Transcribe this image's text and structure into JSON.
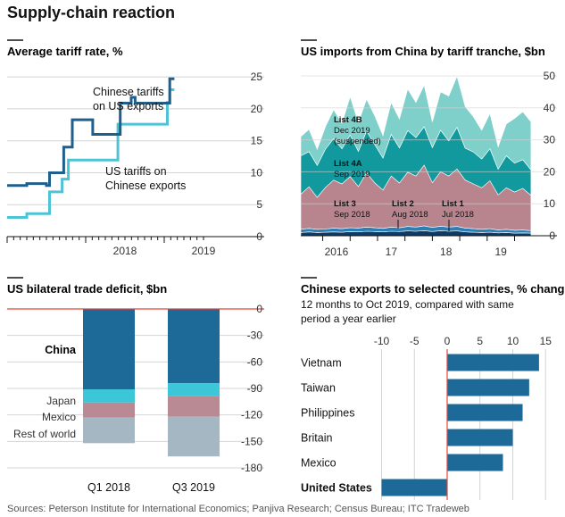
{
  "figure": {
    "title": "Supply-chain reaction",
    "source": "Sources: Peterson Institute for International Economics; Panjiva Research; Census Bureau; ITC Tradeweb"
  },
  "colors": {
    "dark_blue": "#1f5f8b",
    "light_blue": "#4fc3d6",
    "grid": "#d4d4d4",
    "zero_line": "#e0483b",
    "text_muted": "#555555",
    "list1": "#0d3b66",
    "list2": "#2a7fb4",
    "list3": "#b8858f",
    "list4a": "#11999e",
    "list4b": "#7fd0cb",
    "china_bar": "#1d6a98",
    "japan_bar": "#3cc7d8",
    "mexico_bar": "#b98a93",
    "rest_bar": "#a5b7c3",
    "export_bar": "#1d6a98"
  },
  "chart_data": [
    {
      "type": "line",
      "title": "Average tariff rate, %",
      "x_ticks": [
        {
          "x": 2018,
          "label": "2018"
        },
        {
          "x": 2019,
          "label": "2019"
        }
      ],
      "y_ticks": [
        0,
        5,
        10,
        15,
        20,
        25
      ],
      "ylim": [
        0,
        26
      ],
      "xlim": [
        2017.0,
        2020.0
      ],
      "series": [
        {
          "name": "Chinese tariffs on US exports",
          "label_lines": [
            "Chinese tariffs",
            "on US exports"
          ],
          "color_key": "dark_blue",
          "points": [
            [
              2017.0,
              8.0
            ],
            [
              2017.25,
              8.0
            ],
            [
              2017.25,
              8.3
            ],
            [
              2017.5,
              8.3
            ],
            [
              2017.5,
              8.0
            ],
            [
              2017.54,
              8.0
            ],
            [
              2017.54,
              10.0
            ],
            [
              2017.72,
              10.0
            ],
            [
              2017.72,
              14.0
            ],
            [
              2017.83,
              14.0
            ],
            [
              2017.83,
              18.3
            ],
            [
              2018.09,
              18.3
            ],
            [
              2018.09,
              16.0
            ],
            [
              2018.44,
              16.0
            ],
            [
              2018.44,
              20.9
            ],
            [
              2018.58,
              20.9
            ],
            [
              2018.58,
              21.8
            ],
            [
              2018.63,
              21.8
            ],
            [
              2018.63,
              20.9
            ],
            [
              2019.07,
              20.9
            ],
            [
              2019.07,
              24.7
            ],
            [
              2019.13,
              24.7
            ]
          ]
        },
        {
          "name": "US tariffs on Chinese exports",
          "label_lines": [
            "US tariffs on",
            "Chinese exports"
          ],
          "color_key": "light_blue",
          "points": [
            [
              2017.0,
              3.0
            ],
            [
              2017.25,
              3.0
            ],
            [
              2017.25,
              3.6
            ],
            [
              2017.54,
              3.6
            ],
            [
              2017.54,
              7.0
            ],
            [
              2017.7,
              7.0
            ],
            [
              2017.7,
              9.0
            ],
            [
              2017.78,
              9.0
            ],
            [
              2017.78,
              12.0
            ],
            [
              2018.41,
              12.0
            ],
            [
              2018.41,
              17.6
            ],
            [
              2019.04,
              17.6
            ],
            [
              2019.04,
              21.0
            ],
            [
              2019.07,
              21.0
            ],
            [
              2019.07,
              23.0
            ],
            [
              2019.13,
              23.0
            ]
          ]
        }
      ]
    },
    {
      "type": "area",
      "title": "US imports from China by tariff tranche, $bn",
      "x_ticks": [
        {
          "x": 2016,
          "label": "2016"
        },
        {
          "x": 2017,
          "label": "17"
        },
        {
          "x": 2018,
          "label": "18"
        },
        {
          "x": 2019,
          "label": "19"
        }
      ],
      "y_ticks": [
        0,
        10,
        20,
        30,
        40,
        50
      ],
      "ylim": [
        0,
        50
      ],
      "xlim": [
        2015.6,
        2019.85
      ],
      "x": [
        2015.6,
        2015.75,
        2015.9,
        2016.05,
        2016.2,
        2016.35,
        2016.5,
        2016.65,
        2016.8,
        2016.95,
        2017.1,
        2017.25,
        2017.4,
        2017.55,
        2017.7,
        2017.85,
        2018.0,
        2018.15,
        2018.3,
        2018.45,
        2018.6,
        2018.75,
        2018.9,
        2019.05,
        2019.2,
        2019.35,
        2019.5,
        2019.65,
        2019.8
      ],
      "series": [
        {
          "name": "List 1",
          "annotation": [
            "List 1",
            "Jul 2018"
          ],
          "color_key": "list1",
          "values": [
            1.0,
            1.2,
            1.0,
            1.1,
            1.2,
            1.1,
            1.3,
            1.2,
            1.4,
            1.3,
            1.2,
            1.4,
            1.3,
            1.5,
            1.4,
            1.6,
            1.3,
            1.6,
            1.4,
            1.5,
            1.2,
            1.1,
            1.0,
            1.1,
            0.9,
            1.0,
            0.8,
            0.9,
            0.8
          ]
        },
        {
          "name": "List 2",
          "annotation": [
            "List 2",
            "Aug 2018"
          ],
          "color_key": "list2",
          "values": [
            1.0,
            1.1,
            1.0,
            1.0,
            1.2,
            1.1,
            1.2,
            1.2,
            1.3,
            1.2,
            1.1,
            1.3,
            1.2,
            1.4,
            1.3,
            1.5,
            1.3,
            1.4,
            1.3,
            1.4,
            1.2,
            1.1,
            1.0,
            1.1,
            0.9,
            1.0,
            0.9,
            0.9,
            0.8
          ]
        },
        {
          "name": "List 3",
          "annotation": [
            "List 3",
            "Sep 2018"
          ],
          "color_key": "list3",
          "values": [
            11,
            13,
            10,
            13,
            15,
            14,
            16,
            13,
            17,
            14,
            12,
            16,
            14,
            17,
            16,
            19,
            14,
            17,
            16,
            18,
            15,
            14,
            13,
            15,
            11,
            13,
            12,
            13,
            11
          ]
        },
        {
          "name": "List 4A",
          "annotation": [
            "List 4A",
            "Sep 2019"
          ],
          "color_key": "list4a",
          "values": [
            12,
            11,
            10,
            12,
            13,
            11,
            13,
            11,
            13,
            12,
            10,
            13,
            11,
            13,
            12,
            12,
            11,
            13,
            11,
            13,
            10,
            10,
            9,
            10,
            8,
            10,
            9,
            9,
            8
          ]
        },
        {
          "name": "List 4B",
          "annotation": [
            "List 4B",
            "Dec 2019",
            "(suspended)"
          ],
          "color_key": "list4b",
          "values": [
            6,
            7,
            5,
            7,
            9,
            8,
            12,
            9,
            10,
            9,
            7,
            10,
            9,
            13,
            11,
            13,
            8,
            12,
            14,
            16,
            13,
            11,
            9,
            11,
            7,
            10,
            14,
            15,
            15
          ]
        }
      ]
    },
    {
      "type": "bar",
      "title": "US bilateral trade deficit, $bn",
      "categories": [
        "Q1 2018",
        "Q3 2019"
      ],
      "y_ticks": [
        0,
        -30,
        -60,
        -90,
        -120,
        -150,
        -180
      ],
      "ylim": [
        -185,
        0
      ],
      "series": [
        {
          "name": "China",
          "color_key": "china_bar",
          "values": [
            -91,
            -84
          ]
        },
        {
          "name": "Japan",
          "color_key": "japan_bar",
          "values": [
            -15,
            -15
          ]
        },
        {
          "name": "Mexico",
          "color_key": "mexico_bar",
          "values": [
            -17,
            -23
          ]
        },
        {
          "name": "Rest of world",
          "color_key": "rest_bar",
          "values": [
            -29,
            -45
          ]
        }
      ]
    },
    {
      "type": "bar",
      "orientation": "horizontal",
      "title": "Chinese exports to selected countries, % change",
      "subtitle_lines": [
        "12 months to Oct 2019, compared with same",
        "period a year earlier"
      ],
      "x_ticks": [
        -10,
        -5,
        0,
        5,
        10,
        15
      ],
      "xlim": [
        -12,
        16
      ],
      "categories": [
        "Vietnam",
        "Taiwan",
        "Philippines",
        "Britain",
        "Mexico",
        "United States"
      ],
      "values": [
        14,
        12.5,
        11.5,
        10,
        8.5,
        -10
      ]
    }
  ]
}
